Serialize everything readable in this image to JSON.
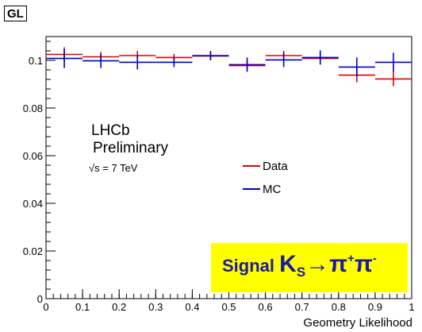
{
  "panel_tag": "GL",
  "text_block": {
    "line1": "LHCb",
    "line2": "Preliminary",
    "energy": "√s = 7 TeV"
  },
  "signal": {
    "word": "Signal",
    "particle": "K",
    "particle_sub": "S",
    "arrow": "→",
    "pi1": "π",
    "pi1_charge": "+",
    "pi2": "π",
    "pi2_charge": "-"
  },
  "colors": {
    "data": "#e00000",
    "mc": "#0000c8",
    "signal_box": "#ffff00"
  },
  "chart_data": {
    "type": "scatter",
    "title": "",
    "xlabel": "Geometry Likelihood",
    "ylabel": "",
    "xlim": [
      0,
      1
    ],
    "ylim": [
      0,
      0.11
    ],
    "x_ticks": [
      0,
      0.1,
      0.2,
      0.3,
      0.4,
      0.5,
      0.6,
      0.7,
      0.8,
      0.9,
      1
    ],
    "x_tick_labels": [
      "0",
      "0.1",
      "0.2",
      "0.3",
      "0.4",
      "0.5",
      "0.6",
      "0.7",
      "0.8",
      "0.9",
      "1"
    ],
    "y_ticks": [
      0,
      0.02,
      0.04,
      0.06,
      0.08,
      0.1
    ],
    "y_tick_labels": [
      "0",
      "0.02",
      "0.04",
      "0.06",
      "0.08",
      "0.1"
    ],
    "bin_edges": [
      0,
      0.1,
      0.2,
      0.3,
      0.4,
      0.5,
      0.6,
      0.7,
      0.8,
      0.9,
      1
    ],
    "legend_position": "center-right",
    "series": [
      {
        "name": "Data",
        "color": "#e00000",
        "values": [
          0.1025,
          0.1015,
          0.102,
          0.1012,
          0.1018,
          0.0978,
          0.102,
          0.1008,
          0.0938,
          0.0922
        ],
        "errors": [
          0.003,
          0.002,
          0.002,
          0.0015,
          0.0015,
          0.002,
          0.002,
          0.002,
          0.003,
          0.003
        ]
      },
      {
        "name": "MC",
        "color": "#0000c8",
        "values": [
          0.1008,
          0.0998,
          0.0992,
          0.0992,
          0.102,
          0.0982,
          0.1002,
          0.1012,
          0.0972,
          0.0992
        ],
        "errors": [
          0.004,
          0.003,
          0.003,
          0.002,
          0.002,
          0.003,
          0.003,
          0.003,
          0.004,
          0.004
        ]
      }
    ]
  }
}
